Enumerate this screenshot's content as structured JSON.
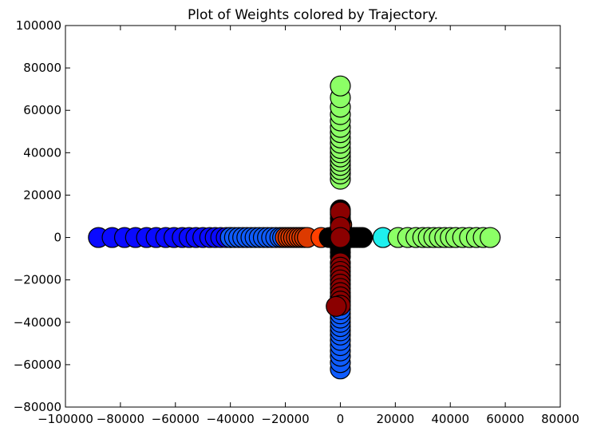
{
  "chart_data": {
    "type": "scatter",
    "title": "Plot of Weights colored by Trajectory.",
    "xlabel": "",
    "ylabel": "",
    "xlim": [
      -100000,
      80000
    ],
    "ylim": [
      -80000,
      100000
    ],
    "x_ticks": [
      -100000,
      -80000,
      -60000,
      -40000,
      -20000,
      0,
      20000,
      40000,
      60000,
      80000
    ],
    "x_tick_labels": [
      "−100000",
      "−80000",
      "−60000",
      "−40000",
      "−20000",
      "0",
      "20000",
      "40000",
      "60000",
      "80000"
    ],
    "y_ticks": [
      -80000,
      -60000,
      -40000,
      -20000,
      0,
      20000,
      40000,
      60000,
      80000,
      100000
    ],
    "y_tick_labels": [
      "−80000",
      "−60000",
      "−40000",
      "−20000",
      "0",
      "20000",
      "40000",
      "60000",
      "80000",
      "100000"
    ],
    "grid": false,
    "marker": "circle",
    "series": [
      {
        "color": "#0a0aff",
        "x": [
          -88000,
          -83000,
          -78500,
          -74500,
          -70500,
          -67000,
          -63500,
          -60500,
          -57500,
          -55000,
          -52500,
          -50000,
          -47500,
          -45500,
          -43500,
          -41500,
          -40000
        ],
        "y": [
          0,
          0,
          0,
          0,
          0,
          0,
          0,
          0,
          0,
          0,
          0,
          0,
          0,
          0,
          0,
          0,
          0
        ]
      },
      {
        "color": "#0f5cff",
        "x": [
          -40000,
          -38500,
          -37000,
          -35500,
          -34000,
          -32500,
          -31000,
          -29500,
          -28000,
          -26500,
          -25000,
          -23500,
          -22000,
          -21000
        ],
        "y": [
          0,
          0,
          0,
          0,
          0,
          0,
          0,
          0,
          0,
          0,
          0,
          0,
          0,
          0
        ]
      },
      {
        "color": "#0f5cff",
        "x": [
          0,
          0,
          0,
          0,
          0,
          0,
          0,
          0,
          0,
          0,
          0,
          0,
          0,
          0,
          0,
          0
        ],
        "y": [
          -62000,
          -59000,
          -56000,
          -53500,
          -51000,
          -48500,
          -46000,
          -44000,
          -42000,
          -40000,
          -38000,
          -36000,
          -34000,
          -32000,
          -30000,
          -28000
        ]
      },
      {
        "color": "#dd3a00",
        "x": [
          -20000,
          -19000,
          -18000,
          -17000,
          -16000,
          -15000,
          -14000,
          -13000,
          -12000
        ],
        "y": [
          0,
          0,
          0,
          0,
          0,
          0,
          0,
          0,
          0
        ]
      },
      {
        "color": "#ff4000",
        "x": [
          -7000,
          500
        ],
        "y": [
          0,
          6000
        ]
      },
      {
        "color": "#000000",
        "x": [
          -4000,
          -3000,
          -2000,
          -1000,
          0,
          1000,
          2000,
          3000,
          4000,
          5000,
          6000,
          7000,
          8000,
          0,
          0,
          0,
          0,
          0,
          0,
          0,
          0,
          0,
          0
        ],
        "y": [
          0,
          0,
          0,
          0,
          0,
          0,
          0,
          0,
          0,
          0,
          0,
          0,
          0,
          13000,
          11000,
          9000,
          7000,
          5000,
          3000,
          -3000,
          -5000,
          -7000,
          -9000
        ]
      },
      {
        "color": "#8b0000",
        "x": [
          0,
          0,
          0,
          0,
          0,
          0,
          0,
          0,
          0,
          0,
          0,
          0,
          0,
          0,
          -1500
        ],
        "y": [
          12000,
          5000,
          0,
          -12000,
          -14000,
          -16000,
          -18000,
          -20000,
          -22000,
          -24000,
          -26000,
          -28000,
          -30000,
          -32000,
          -32500
        ]
      },
      {
        "color": "#1ef0ee",
        "x": [
          15500
        ],
        "y": [
          0
        ]
      },
      {
        "color": "#8cff66",
        "x": [
          21000,
          24500,
          27500,
          30000,
          32000,
          34000,
          36000,
          38000,
          40000,
          42000,
          44500,
          47000,
          49500,
          52000,
          54500
        ],
        "y": [
          0,
          0,
          0,
          0,
          0,
          0,
          0,
          0,
          0,
          0,
          0,
          0,
          0,
          0,
          0
        ]
      },
      {
        "color": "#8cff66",
        "x": [
          0,
          0,
          0,
          0,
          0,
          0,
          0,
          0,
          0,
          0,
          0,
          0,
          0,
          0,
          0,
          0,
          0
        ],
        "y": [
          27500,
          30000,
          32000,
          34000,
          36000,
          38000,
          40000,
          42000,
          44500,
          47000,
          49500,
          52000,
          55000,
          58000,
          61500,
          66000,
          71500
        ]
      }
    ]
  }
}
